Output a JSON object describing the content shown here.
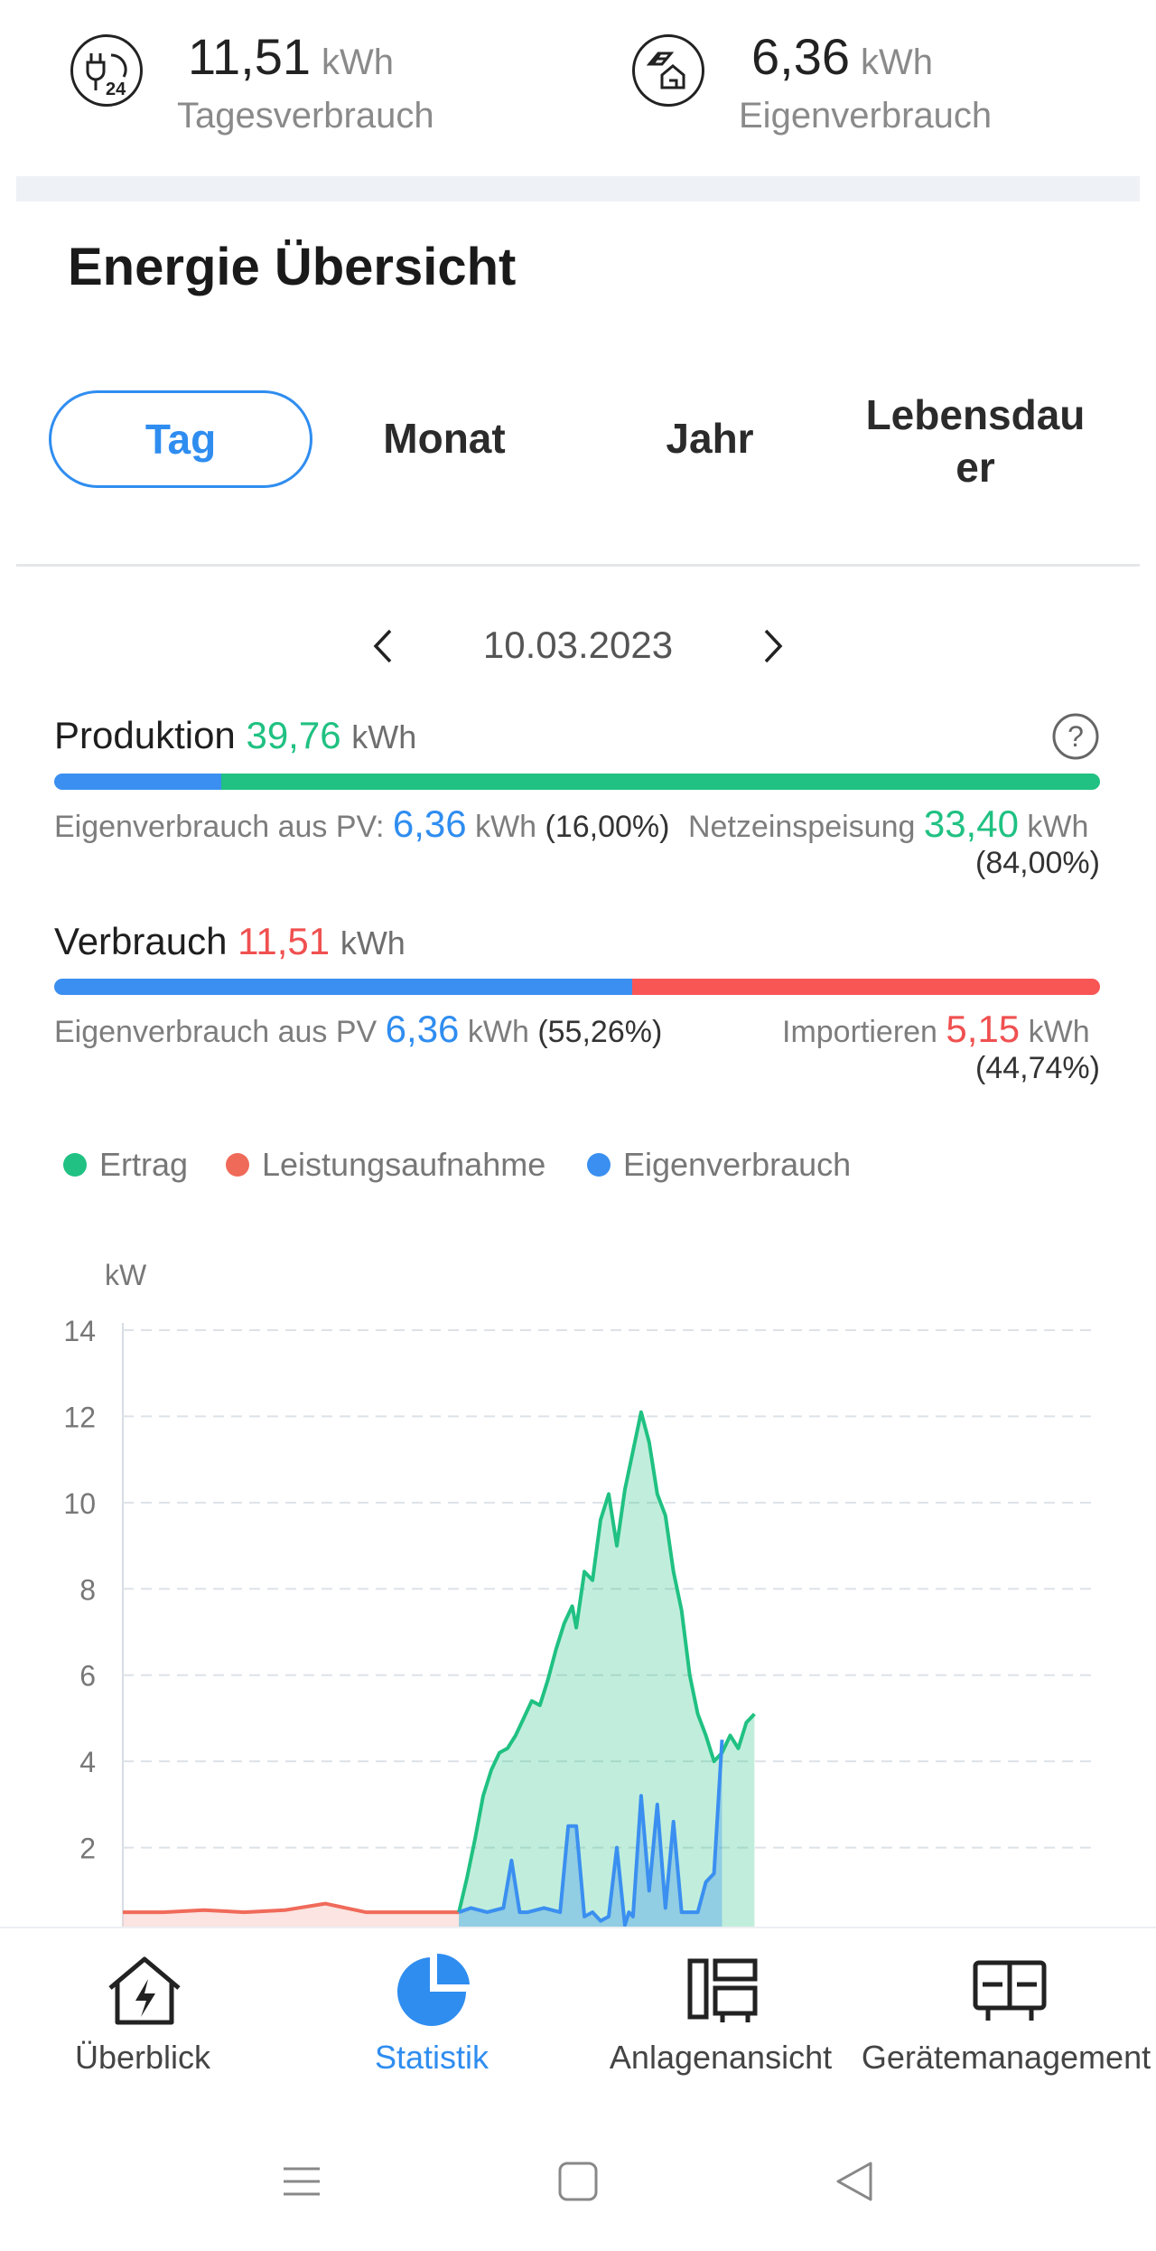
{
  "top_stats": [
    {
      "value": "11,51",
      "unit": "kWh",
      "label": "Tagesverbrauch",
      "icon": "plug-24h-icon"
    },
    {
      "value": "6,36",
      "unit": "kWh",
      "label": "Eigenverbrauch",
      "icon": "solar-house-icon"
    }
  ],
  "section": {
    "title": "Energie Übersicht"
  },
  "tabs": [
    {
      "label": "Tag",
      "active": true
    },
    {
      "label": "Monat",
      "active": false
    },
    {
      "label": "Jahr",
      "active": false
    },
    {
      "label": "Lebensdau\ner",
      "active": false
    }
  ],
  "date_nav": {
    "date": "10.03.2023"
  },
  "production": {
    "label": "Produktion",
    "value": "39,76",
    "unit": "kWh",
    "self_label": "Eigenverbrauch aus PV:",
    "self_value": "6,36",
    "self_unit": "kWh",
    "self_pct": "(16,00%)",
    "feed_label": "Netzeinspeisung",
    "feed_value": "33,40",
    "feed_unit": "kWh",
    "feed_pct": "(84,00%)",
    "self_fraction": 0.16
  },
  "consumption": {
    "label": "Verbrauch",
    "value": "11,51",
    "unit": "kWh",
    "self_label": "Eigenverbrauch aus PV",
    "self_value": "6,36",
    "self_unit": "kWh",
    "self_pct": "(55,26%)",
    "import_label": "Importieren",
    "import_value": "5,15",
    "import_unit": "kWh",
    "import_pct": "(44,74%)",
    "self_fraction": 0.5526
  },
  "legend": [
    {
      "label": "Ertrag",
      "color": "#20c182"
    },
    {
      "label": "Leistungsaufnahme",
      "color": "#f06a5a"
    },
    {
      "label": "Eigenverbrauch",
      "color": "#3a8ff0"
    }
  ],
  "chart_data": {
    "type": "area",
    "ylabel": "kW",
    "y_ticks": [
      "14",
      "12",
      "10",
      "8",
      "6",
      "4",
      "2"
    ],
    "ylim": [
      0,
      14
    ],
    "x_range": [
      0,
      24
    ],
    "grid": true,
    "series": [
      {
        "name": "Ertrag",
        "color": "#20c182",
        "x": [
          8.3,
          8.5,
          8.7,
          8.9,
          9.1,
          9.3,
          9.5,
          9.7,
          9.9,
          10.1,
          10.3,
          10.5,
          10.7,
          10.9,
          11.1,
          11.2,
          11.4,
          11.6,
          11.8,
          12.0,
          12.2,
          12.4,
          12.6,
          12.8,
          13.0,
          13.2,
          13.4,
          13.6,
          13.8,
          14.0,
          14.2,
          14.4,
          14.6,
          14.8,
          15.0,
          15.2,
          15.4,
          15.6,
          15.8,
          16.0,
          16.2,
          16.4,
          16.6
        ],
        "y": [
          0.5,
          1.3,
          2.2,
          3.2,
          3.8,
          4.2,
          4.3,
          4.6,
          5.0,
          5.4,
          5.3,
          5.9,
          6.6,
          7.2,
          7.6,
          7.1,
          8.4,
          8.2,
          9.6,
          10.2,
          9.0,
          10.3,
          11.2,
          12.1,
          11.4,
          10.2,
          9.7,
          8.4,
          7.5,
          6.0,
          5.1,
          4.6,
          4.0,
          4.2,
          4.6,
          4.3,
          4.9,
          5.1,
          null,
          null,
          null,
          null,
          null
        ]
      },
      {
        "name": "Leistungsaufnahme",
        "color": "#f06a5a",
        "x": [
          0,
          1,
          2,
          3,
          4,
          5,
          6,
          7,
          8,
          8.3
        ],
        "y": [
          0.5,
          0.5,
          0.55,
          0.5,
          0.55,
          0.7,
          0.5,
          0.5,
          0.5,
          0.5
        ]
      },
      {
        "name": "Eigenverbrauch",
        "color": "#3a8ff0",
        "x": [
          8.3,
          8.6,
          9.0,
          9.4,
          9.6,
          9.8,
          10.0,
          10.4,
          10.8,
          11.0,
          11.2,
          11.4,
          11.6,
          11.8,
          12.0,
          12.2,
          12.4,
          12.5,
          12.6,
          12.8,
          13.0,
          13.2,
          13.4,
          13.6,
          13.8,
          14.0,
          14.2,
          14.4,
          14.6,
          14.8,
          15.0,
          15.2,
          15.4,
          15.6
        ],
        "y": [
          0.5,
          0.6,
          0.5,
          0.6,
          1.7,
          0.5,
          0.5,
          0.6,
          0.5,
          2.5,
          2.5,
          0.4,
          0.5,
          0.3,
          0.4,
          2.0,
          0.2,
          0.5,
          0.4,
          3.2,
          1.0,
          3.0,
          0.6,
          2.6,
          0.5,
          0.5,
          0.5,
          1.2,
          1.4,
          4.5,
          null,
          null,
          null,
          null
        ]
      }
    ]
  },
  "bottom_nav": [
    {
      "label": "Überblick",
      "icon": "house-bolt-icon",
      "active": false
    },
    {
      "label": "Statistik",
      "icon": "pie-chart-icon",
      "active": true
    },
    {
      "label": "Anlagenansicht",
      "icon": "layout-icon",
      "active": false
    },
    {
      "label": "Gerätemanagement",
      "icon": "device-icon",
      "active": false
    }
  ],
  "system_nav": {
    "icons": [
      "menu-icon",
      "home-square-icon",
      "back-triangle-icon"
    ]
  }
}
